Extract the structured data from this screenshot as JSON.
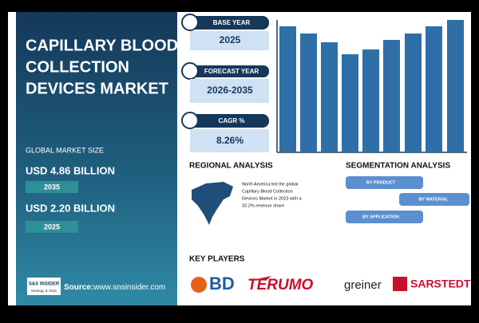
{
  "sidebar": {
    "title_lines": [
      "CAPILLARY BLOOD",
      "COLLECTION",
      "DEVICES MARKET"
    ],
    "market_size_label": "GLOBAL MARKET SIZE",
    "items": [
      {
        "value": "USD 4.86 BILLION",
        "year": "2035"
      },
      {
        "value": "USD 2.20 BILLION",
        "year": "2025"
      }
    ],
    "logo": {
      "name": "S&S INSIDER",
      "tagline": "Strategy & Stats"
    },
    "source_label": "Source:",
    "source_url": "www.snsinsider.com"
  },
  "stats": [
    {
      "label": "BASE YEAR",
      "value": "2025"
    },
    {
      "label": "FORECAST YEAR",
      "value": "2026-2035"
    },
    {
      "label": "CAGR %",
      "value": "8.26%"
    }
  ],
  "regional": {
    "title": "REGIONAL ANALYSIS",
    "text_lines": [
      "North America led the global",
      "Capillary Blood Collection",
      "Devices Market in 2023 with a",
      "32.2% revenue share"
    ]
  },
  "segmentation": {
    "title": "SEGMENTATION ANALYSIS",
    "items": [
      "BY PRODUCT",
      "BY MATERIAL",
      "BY APPLICATION"
    ]
  },
  "key_players": {
    "title": "KEY PLAYERS",
    "companies": [
      "BD",
      "TERUMO",
      "greiner",
      "SARSTEDT"
    ]
  }
}
